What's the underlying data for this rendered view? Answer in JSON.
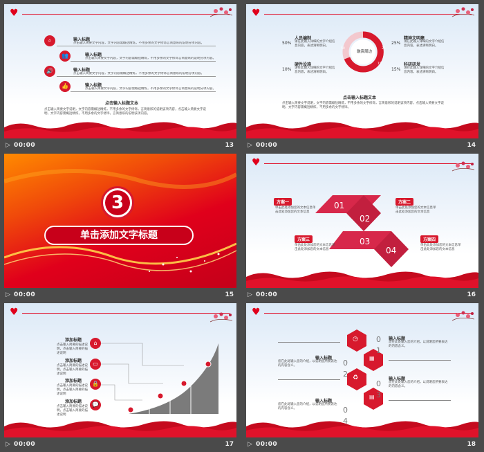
{
  "slides": [
    {
      "number": "13",
      "time": "00:00",
      "items": [
        {
          "title": "输入标题",
          "text": "点击输入简要文字内容，文字内容需概括精炼，不用多余的文字修饰言简意赅的说明分项内容。"
        },
        {
          "title": "输入标题",
          "text": "点击输入简要文字内容，文字内容需概括精炼，不用多余的文字修饰言简意赅的说明分项内容。"
        },
        {
          "title": "输入标题",
          "text": "点击输入简要文字内容，文字内容需概括精炼，不用多余的文字修饰言简意赅的说明分项内容。"
        },
        {
          "title": "输入标题",
          "text": "点击输入简要文字内容，文字内容需概括精炼，不用多余的文字修饰言简意赅的说明分项内容。"
        }
      ],
      "icons": [
        "search-icon",
        "users-icon",
        "speaker-icon",
        "thumbs-up-icon"
      ],
      "heading": "点击输入标题文本",
      "body": "点击输入简要文字说明，文字内容需概括精炼，不用多余的文字修饰，言简意赅的说明该项内容，点击输入简要文字说明，文字内容需概括精炼，不用多余的文字修饰，言简意赅的说明该项内容。"
    },
    {
      "number": "14",
      "time": "00:00",
      "center_label": "融资周边",
      "left": [
        {
          "pct": "50%",
          "title": "人员编制",
          "text": "请在此输入详细的文字介绍信息内容，表述清晰明白。"
        },
        {
          "pct": "10%",
          "title": "硬件设施",
          "text": "请在此输入详细的文字介绍信息内容，表述清晰明白。"
        }
      ],
      "right": [
        {
          "pct": "25%",
          "title": "精神文明建",
          "text": "请在此输入详细的文字介绍信息内容，表述清晰明白。"
        },
        {
          "pct": "15%",
          "title": "科研研发",
          "text": "请在此输入详细的文字介绍信息内容，表述清晰明白。"
        }
      ],
      "ring_left_digits": "50",
      "ring_right_digits": "25",
      "ring_bottom_digits": "15",
      "heading": "点击输入标题文本",
      "body": "点击输入简要文字说明，文字内容需概括精炼，不用多余的文字修饰，言简意赅的说明该项内容，点击输入简要文字说明，文字内容需概括精炼，不用多余的文字修饰。"
    },
    {
      "number": "15",
      "time": "00:00",
      "big_number": "3",
      "title": "单击添加文字标题"
    },
    {
      "number": "16",
      "time": "00:00",
      "plans": [
        {
          "label": "方案一",
          "text": "单击此处添加您的文本信息单击此处添加您的文本信息"
        },
        {
          "label": "方案二",
          "text": "单击此处添加您的文本信息单击此处添加您的文本信息"
        },
        {
          "label": "方案三",
          "text": "单击此处添加您的文本信息单击此处添加您的文本信息"
        },
        {
          "label": "方案四",
          "text": "单击此处添加您的文本信息单击此处添加您的文本信息"
        }
      ],
      "tiles": [
        "01",
        "02",
        "03",
        "04"
      ]
    },
    {
      "number": "17",
      "time": "00:00",
      "items": [
        {
          "title": "添加标题",
          "text": "点击输入简要的描述说明，点击输入简要的描述说明"
        },
        {
          "title": "添加标题",
          "text": "点击输入简要的描述说明，点击输入简要的描述说明"
        },
        {
          "title": "添加标题",
          "text": "点击输入简要的描述说明，点击输入简要的描述说明"
        },
        {
          "title": "添加标题",
          "text": "点击输入简要的描述说明，点击输入简要的描述说明"
        }
      ],
      "icons": [
        "home-icon",
        "battery-icon",
        "lock-icon",
        "chat-icon"
      ]
    },
    {
      "number": "18",
      "time": "00:00",
      "labels": [
        {
          "title": "输入标题",
          "text": "您在此处输入您的介绍，以说明您所要表达的内容含义。"
        },
        {
          "title": "输入标题",
          "text": "您在此处输入您的介绍，以说明您所要表达的内容含义。"
        },
        {
          "title": "输入标题",
          "text": "您在此处输入您的介绍，以说明您所要表达的内容含义。"
        },
        {
          "title": "输入标题",
          "text": "您在此处输入您的介绍，以说明您所要表达的内容含义。"
        }
      ],
      "digits": [
        "0",
        "1",
        "0",
        "2",
        "0",
        "3",
        "0",
        "4"
      ],
      "hex_icons": [
        "clock-icon",
        "calendar-icon",
        "recycle-icon",
        "document-icon"
      ]
    }
  ],
  "colors": {
    "accent": "#e0001b",
    "dark_red": "#b3001b",
    "caption_bg": "#4a4a4a"
  }
}
